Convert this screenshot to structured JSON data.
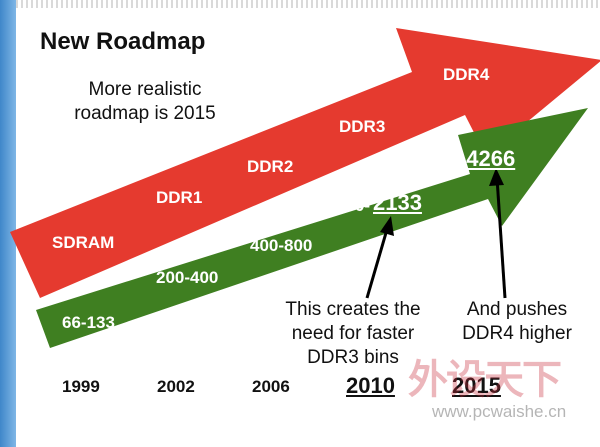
{
  "title": "New Roadmap",
  "note_realistic": [
    "More realistic",
    "roadmap is 2015"
  ],
  "red_arrow": {
    "color": "#e53a2f",
    "labels": [
      "SDRAM",
      "DDR1",
      "DDR2",
      "DDR3",
      "DDR4"
    ]
  },
  "green_arrow": {
    "color": "#3f7f21",
    "labels": [
      "66-133",
      "200-400",
      "400-800",
      "800-",
      "2133",
      "2133-4266"
    ]
  },
  "callouts": {
    "ddr3": [
      "This creates the",
      "need for faster",
      "DDR3 bins"
    ],
    "ddr4": [
      "And pushes",
      "DDR4 higher"
    ]
  },
  "years": [
    "1999",
    "2002",
    "2006",
    "2010",
    "2015"
  ],
  "watermark": {
    "chinese": "外设天下",
    "url": "www.pcwaishe.cn"
  }
}
